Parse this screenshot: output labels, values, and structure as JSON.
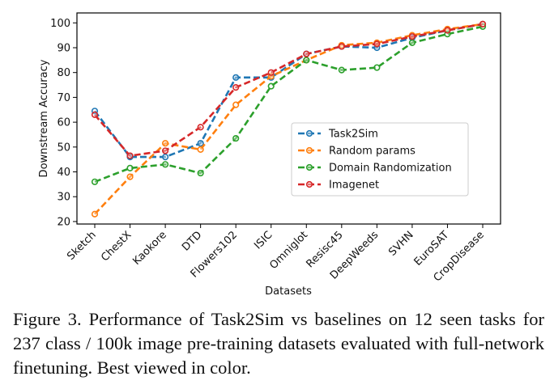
{
  "chart_data": {
    "type": "line",
    "title": "",
    "xlabel": "Datasets",
    "ylabel": "Downstream Accuracy",
    "ylim": [
      19,
      104
    ],
    "yticks": [
      20,
      30,
      40,
      50,
      60,
      70,
      80,
      90,
      100
    ],
    "categories": [
      "Sketch",
      "ChestX",
      "Kaokore",
      "DTD",
      "Flowers102",
      "ISIC",
      "Omniglot",
      "Resisc45",
      "DeepWeeds",
      "SVHN",
      "EuroSAT",
      "CropDisease"
    ],
    "legend_position": "center-right",
    "line_style": "dashed",
    "series": [
      {
        "name": "Task2Sim",
        "color": "#1f77b4",
        "values": [
          64.5,
          46,
          46,
          51.5,
          78,
          78,
          87.5,
          90.5,
          90,
          94,
          97,
          99.5
        ]
      },
      {
        "name": "Random params",
        "color": "#ff7f0e",
        "values": [
          23,
          38,
          51.5,
          49,
          67,
          78.5,
          85,
          91,
          92,
          95,
          97.5,
          99.5
        ]
      },
      {
        "name": "Domain Randomization",
        "color": "#2ca02c",
        "values": [
          36,
          41.5,
          43,
          39.5,
          53.5,
          74.5,
          85,
          81,
          82,
          92,
          95.5,
          98.5
        ]
      },
      {
        "name": "Imagenet",
        "color": "#d62728",
        "values": [
          63,
          46.5,
          48.5,
          58,
          74,
          80,
          87.5,
          90.5,
          91.5,
          94.5,
          97,
          99.5
        ]
      }
    ]
  },
  "caption": "Figure 3. Performance of Task2Sim vs baselines on 12 seen tasks for 237 class / 100k image pre-training datasets evaluated with full-network finetuning. Best viewed in color."
}
